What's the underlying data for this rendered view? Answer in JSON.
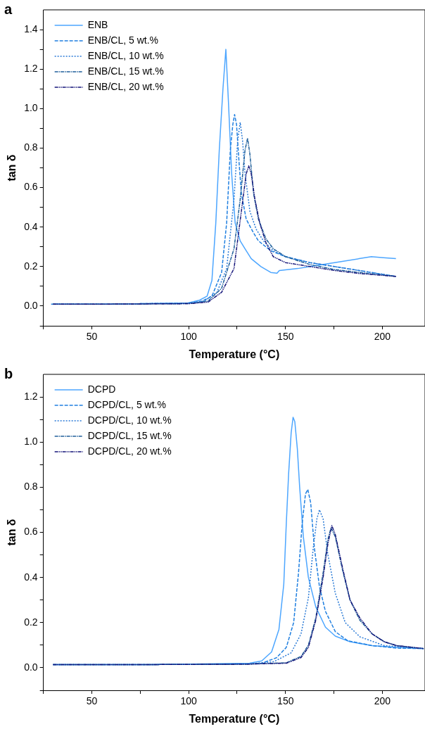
{
  "chart_data": [
    {
      "type": "line",
      "title": "a",
      "xlabel": "Temperature (°C)",
      "ylabel": "tan δ",
      "legend": "top left",
      "grid": false,
      "marker": "none",
      "xlim": [
        25,
        222
      ],
      "xticks": [
        {
          "value": 25,
          "label": null
        },
        50,
        {
          "value": 75,
          "label": null
        },
        100,
        {
          "value": 125,
          "label": null
        },
        150,
        {
          "value": 175,
          "label": null
        },
        200
      ],
      "ylim": [
        -0.1,
        1.5
      ],
      "yticks": [
        {
          "value": -0.1,
          "label": null
        },
        {
          "value": 0,
          "label": "0.0"
        },
        {
          "value": 0.1,
          "label": null
        },
        0.2,
        {
          "value": 0.3,
          "label": null
        },
        0.4,
        {
          "value": 0.5,
          "label": null
        },
        0.6,
        {
          "value": 0.7,
          "label": null
        },
        0.8,
        {
          "value": 0.9,
          "label": null
        },
        {
          "value": 1,
          "label": "1.0"
        },
        {
          "value": 1.1,
          "label": null
        },
        1.2,
        {
          "value": 1.3,
          "label": null
        },
        1.4
      ],
      "series": [
        {
          "name": "ENB",
          "color": "#4da6ff",
          "line_style": "solid",
          "x": [
            30,
            60,
            99.4,
            105.7,
            109.5,
            112,
            114,
            115.8,
            117.7,
            119.2,
            120.5,
            122.2,
            124,
            126.6,
            129.1,
            132.3,
            137.3,
            142.4,
            145.6,
            146.8,
            156.3,
            162.7,
            175.3,
            188,
            194.3,
            200.6,
            207
          ],
          "values": [
            0.01,
            0.01,
            0.015,
            0.03,
            0.05,
            0.13,
            0.42,
            0.79,
            1.1,
            1.3,
            1.04,
            0.67,
            0.42,
            0.33,
            0.29,
            0.24,
            0.2,
            0.17,
            0.166,
            0.18,
            0.19,
            0.2,
            0.22,
            0.24,
            0.25,
            0.245,
            0.24
          ]
        },
        {
          "name": "ENB/CL, 5 wt.%",
          "color": "#1f7fe0",
          "line_style": "dashed",
          "x": [
            29,
            60,
            100,
            107,
            112,
            117,
            119.6,
            121.5,
            122.8,
            123.7,
            124.7,
            126,
            127.2,
            129.7,
            133.5,
            136,
            142.4,
            150,
            162.7,
            175.3,
            188,
            207
          ],
          "values": [
            0.01,
            0.01,
            0.015,
            0.025,
            0.05,
            0.17,
            0.42,
            0.79,
            0.92,
            0.97,
            0.92,
            0.73,
            0.57,
            0.44,
            0.37,
            0.33,
            0.28,
            0.25,
            0.22,
            0.2,
            0.18,
            0.15
          ]
        },
        {
          "name": "ENB/CL, 10 wt.%",
          "color": "#2a7ad6",
          "line_style": "dotted",
          "x": [
            30,
            60,
            100,
            108,
            114.6,
            119.6,
            123.4,
            125.3,
            126.6,
            127.8,
            129.1,
            131.6,
            134.8,
            138.6,
            143.7,
            150,
            162.7,
            175.3,
            188,
            207
          ],
          "values": [
            0.01,
            0.01,
            0.015,
            0.025,
            0.07,
            0.19,
            0.54,
            0.84,
            0.93,
            0.84,
            0.67,
            0.48,
            0.39,
            0.33,
            0.28,
            0.25,
            0.22,
            0.2,
            0.18,
            0.15
          ]
        },
        {
          "name": "ENB/CL, 15 wt.%",
          "color": "#1f5f9a",
          "line_style": "dashdot",
          "x": [
            30,
            60,
            100,
            110,
            117,
            123.4,
            126.6,
            129.1,
            130.4,
            131.6,
            133.5,
            136,
            139.9,
            143.7,
            150,
            162.7,
            175.3,
            188,
            207
          ],
          "values": [
            0.01,
            0.01,
            0.012,
            0.025,
            0.09,
            0.29,
            0.54,
            0.79,
            0.85,
            0.77,
            0.57,
            0.44,
            0.34,
            0.29,
            0.25,
            0.21,
            0.185,
            0.17,
            0.15
          ]
        },
        {
          "name": "ENB/CL, 20 wt.%",
          "color": "#15157a",
          "line_style": "dashdotdot",
          "x": [
            30,
            60,
            100,
            110,
            117,
            123.4,
            127.2,
            129.7,
            131,
            132.3,
            134.2,
            136.7,
            139.9,
            143.7,
            150,
            162.7,
            175.3,
            188,
            207
          ],
          "values": [
            0.01,
            0.01,
            0.012,
            0.02,
            0.07,
            0.19,
            0.48,
            0.67,
            0.71,
            0.67,
            0.54,
            0.42,
            0.32,
            0.25,
            0.22,
            0.2,
            0.18,
            0.165,
            0.15
          ]
        }
      ]
    },
    {
      "type": "line",
      "title": "b",
      "xlabel": "Temperature (°C)",
      "ylabel": "tan δ",
      "legend": "top left",
      "grid": false,
      "marker": "none",
      "xlim": [
        25,
        222
      ],
      "xticks": [
        {
          "value": 25,
          "label": null
        },
        50,
        {
          "value": 75,
          "label": null
        },
        100,
        {
          "value": 125,
          "label": null
        },
        150,
        {
          "value": 175,
          "label": null
        },
        200
      ],
      "ylim": [
        -0.1,
        1.3
      ],
      "yticks": [
        {
          "value": -0.1,
          "label": null
        },
        {
          "value": 0,
          "label": "0.0"
        },
        {
          "value": 0.1,
          "label": null
        },
        0.2,
        {
          "value": 0.3,
          "label": null
        },
        0.4,
        {
          "value": 0.5,
          "label": null
        },
        0.6,
        {
          "value": 0.7,
          "label": null
        },
        0.8,
        {
          "value": 0.9,
          "label": null
        },
        {
          "value": 1,
          "label": "1.0"
        },
        {
          "value": 1.1,
          "label": null
        },
        1.2
      ],
      "series": [
        {
          "name": "DCPD",
          "color": "#4da6ff",
          "line_style": "solid",
          "x": [
            30,
            80,
            131.4,
            137.7,
            142.8,
            146.6,
            149.1,
            150.4,
            151.6,
            152.9,
            153.9,
            154.8,
            156.1,
            157.3,
            159.2,
            161.8,
            165.6,
            170.6,
            175.7,
            183.3,
            194.7,
            207.3,
            221.3
          ],
          "values": [
            0.014,
            0.014,
            0.02,
            0.03,
            0.07,
            0.17,
            0.37,
            0.64,
            0.86,
            1.04,
            1.11,
            1.09,
            0.97,
            0.8,
            0.58,
            0.4,
            0.27,
            0.18,
            0.14,
            0.115,
            0.098,
            0.09,
            0.085
          ]
        },
        {
          "name": "DCPD/CL, 5 wt.%",
          "color": "#1f7fe0",
          "line_style": "dashed",
          "x": [
            30,
            80,
            130,
            137.7,
            145.3,
            150.4,
            154.2,
            156.7,
            158.6,
            160.3,
            161.5,
            163,
            164.9,
            167.5,
            170.6,
            175.7,
            182,
            194.7,
            207.3,
            221.3
          ],
          "values": [
            0.014,
            0.014,
            0.016,
            0.02,
            0.044,
            0.09,
            0.2,
            0.42,
            0.64,
            0.77,
            0.79,
            0.73,
            0.53,
            0.36,
            0.25,
            0.16,
            0.12,
            0.098,
            0.087,
            0.085
          ]
        },
        {
          "name": "DCPD/CL, 10 wt.%",
          "color": "#2a7ad6",
          "line_style": "dotted",
          "x": [
            30,
            80,
            130,
            144,
            152.9,
            158,
            161.8,
            164.3,
            166.2,
            167.5,
            169.4,
            171.9,
            175.7,
            180.8,
            188.4,
            201,
            221.3
          ],
          "values": [
            0.014,
            0.014,
            0.016,
            0.027,
            0.066,
            0.15,
            0.31,
            0.53,
            0.66,
            0.7,
            0.66,
            0.5,
            0.33,
            0.2,
            0.137,
            0.098,
            0.085
          ]
        },
        {
          "name": "DCPD/CL, 15 wt.%",
          "color": "#1f5f9a",
          "line_style": "dashdot",
          "x": [
            30,
            80,
            130,
            150.4,
            158,
            161.8,
            165.6,
            169.4,
            171.9,
            173.5,
            175.7,
            179.5,
            183.3,
            188.4,
            194.7,
            201,
            207.3,
            221.3
          ],
          "values": [
            0.014,
            0.014,
            0.016,
            0.022,
            0.05,
            0.1,
            0.22,
            0.42,
            0.57,
            0.62,
            0.58,
            0.43,
            0.3,
            0.21,
            0.15,
            0.115,
            0.098,
            0.085
          ]
        },
        {
          "name": "DCPD/CL, 20 wt.%",
          "color": "#15157a",
          "line_style": "dashdotdot",
          "x": [
            30,
            80,
            130,
            150.4,
            158,
            161.8,
            165.6,
            169.4,
            171.9,
            173.9,
            175.7,
            179.5,
            183.3,
            188.4,
            194.7,
            201,
            207.3,
            221.3
          ],
          "values": [
            0.014,
            0.014,
            0.016,
            0.02,
            0.045,
            0.09,
            0.21,
            0.4,
            0.55,
            0.63,
            0.59,
            0.44,
            0.3,
            0.22,
            0.15,
            0.115,
            0.098,
            0.085
          ]
        }
      ]
    }
  ]
}
